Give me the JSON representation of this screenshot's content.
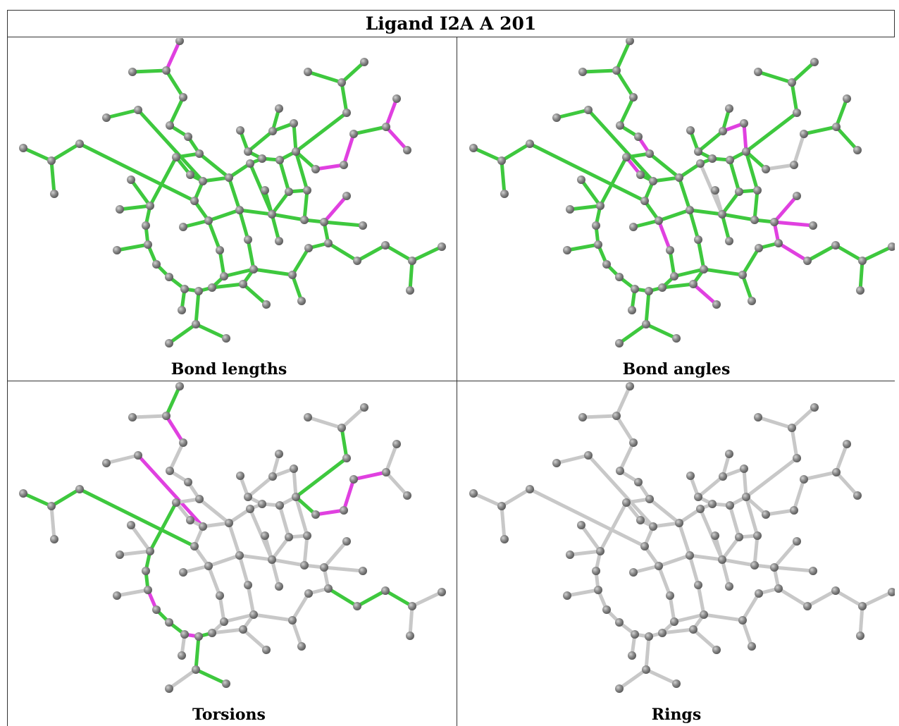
{
  "title": "Ligand I2A A 201",
  "panels": [
    {
      "caption": "Bond lengths"
    },
    {
      "caption": "Bond angles"
    },
    {
      "caption": "Torsions"
    },
    {
      "caption": "Rings"
    }
  ]
}
